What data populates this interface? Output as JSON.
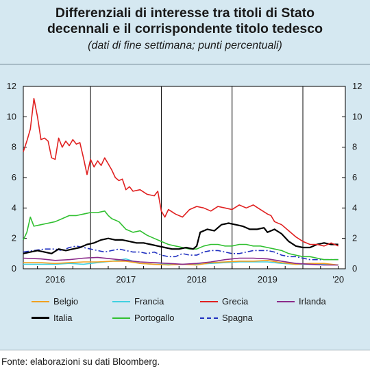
{
  "title_line1": "Differenziali di interesse tra titoli di Stato",
  "title_line2": "decennali e il corrispondente titolo tedesco",
  "subtitle": "(dati di fine settimana; punti percentuali)",
  "source": "Fonte: elaborazioni su dati Bloomberg.",
  "chart_data": {
    "type": "line",
    "title": "Differenziali di interesse tra titoli di Stato decennali e il corrispondente titolo tedesco",
    "subtitle": "(dati di fine settimana; punti percentuali)",
    "xlim": [
      2015.55,
      2020.1
    ],
    "ylim": [
      0,
      12
    ],
    "y_ticks": [
      0,
      2,
      4,
      6,
      8,
      10,
      12
    ],
    "x_tick_labels": [
      "2016",
      "2017",
      "2018",
      "2019",
      "'20"
    ],
    "x_tick_label_positions": [
      2016.0,
      2017.0,
      2018.0,
      2019.0,
      2020.0
    ],
    "year_boundaries": [
      2016.5,
      2017.5,
      2018.5,
      2019.5
    ],
    "legend_position": "bottom",
    "series": [
      {
        "name": "Belgio",
        "color": "#f0a020",
        "dash": "solid",
        "x": [
          2015.55,
          2015.8,
          2016.0,
          2016.2,
          2016.4,
          2016.6,
          2016.8,
          2017.0,
          2017.2,
          2017.4,
          2017.6,
          2017.8,
          2018.0,
          2018.2,
          2018.4,
          2018.6,
          2018.8,
          2019.0,
          2019.2,
          2019.4,
          2019.6,
          2019.8,
          2020.0
        ],
        "values": [
          0.4,
          0.4,
          0.35,
          0.4,
          0.45,
          0.45,
          0.5,
          0.5,
          0.35,
          0.3,
          0.25,
          0.3,
          0.25,
          0.4,
          0.45,
          0.5,
          0.5,
          0.55,
          0.4,
          0.3,
          0.35,
          0.35,
          0.25
        ]
      },
      {
        "name": "Francia",
        "color": "#40d0e0",
        "dash": "solid",
        "x": [
          2015.55,
          2015.8,
          2016.0,
          2016.2,
          2016.4,
          2016.6,
          2016.8,
          2017.0,
          2017.2,
          2017.4,
          2017.6,
          2017.8,
          2018.0,
          2018.2,
          2018.4,
          2018.6,
          2018.8,
          2019.0,
          2019.2,
          2019.4,
          2019.6,
          2019.8,
          2020.0
        ],
        "values": [
          0.3,
          0.3,
          0.3,
          0.35,
          0.3,
          0.4,
          0.5,
          0.65,
          0.35,
          0.3,
          0.3,
          0.3,
          0.3,
          0.35,
          0.4,
          0.45,
          0.45,
          0.45,
          0.35,
          0.3,
          0.3,
          0.3,
          0.25
        ]
      },
      {
        "name": "Grecia",
        "color": "#e02020",
        "dash": "solid",
        "x": [
          2015.55,
          2015.6,
          2015.65,
          2015.7,
          2015.75,
          2015.8,
          2015.85,
          2015.9,
          2015.95,
          2016.0,
          2016.05,
          2016.1,
          2016.15,
          2016.2,
          2016.25,
          2016.3,
          2016.35,
          2016.4,
          2016.45,
          2016.5,
          2016.55,
          2016.6,
          2016.65,
          2016.7,
          2016.75,
          2016.8,
          2016.85,
          2016.9,
          2016.95,
          2017.0,
          2017.05,
          2017.1,
          2017.2,
          2017.3,
          2017.4,
          2017.45,
          2017.5,
          2017.55,
          2017.6,
          2017.7,
          2017.8,
          2017.9,
          2018.0,
          2018.1,
          2018.2,
          2018.3,
          2018.4,
          2018.5,
          2018.6,
          2018.7,
          2018.8,
          2018.9,
          2019.0,
          2019.05,
          2019.1,
          2019.2,
          2019.3,
          2019.4,
          2019.5,
          2019.6,
          2019.7,
          2019.8,
          2019.9,
          2020.0
        ],
        "values": [
          7.7,
          8.4,
          9.2,
          11.2,
          10.0,
          8.5,
          8.6,
          8.4,
          7.3,
          7.2,
          8.6,
          8.0,
          8.4,
          8.1,
          8.5,
          8.2,
          8.3,
          7.3,
          6.2,
          7.2,
          6.7,
          7.1,
          6.8,
          7.3,
          6.9,
          6.5,
          6.0,
          5.8,
          5.9,
          5.2,
          5.4,
          5.1,
          5.2,
          4.9,
          4.8,
          5.1,
          3.8,
          3.4,
          3.9,
          3.6,
          3.4,
          3.9,
          4.1,
          4.0,
          3.8,
          4.1,
          4.0,
          3.9,
          4.2,
          4.0,
          4.2,
          3.9,
          3.6,
          3.5,
          3.1,
          2.9,
          2.5,
          2.1,
          1.8,
          1.6,
          1.6,
          1.5,
          1.7,
          1.5
        ]
      },
      {
        "name": "Irlanda",
        "color": "#8a2a8a",
        "dash": "solid",
        "x": [
          2015.55,
          2015.8,
          2016.0,
          2016.2,
          2016.4,
          2016.6,
          2016.8,
          2017.0,
          2017.2,
          2017.4,
          2017.6,
          2017.8,
          2018.0,
          2018.2,
          2018.4,
          2018.6,
          2018.8,
          2019.0,
          2019.2,
          2019.4,
          2019.6,
          2019.8,
          2020.0
        ],
        "values": [
          0.7,
          0.65,
          0.55,
          0.6,
          0.7,
          0.75,
          0.65,
          0.55,
          0.45,
          0.4,
          0.35,
          0.3,
          0.35,
          0.45,
          0.6,
          0.7,
          0.7,
          0.65,
          0.5,
          0.35,
          0.3,
          0.25,
          0.25
        ]
      },
      {
        "name": "Italia",
        "color": "#000000",
        "dash": "solid",
        "x": [
          2015.55,
          2015.65,
          2015.75,
          2015.85,
          2015.95,
          2016.05,
          2016.15,
          2016.25,
          2016.35,
          2016.45,
          2016.55,
          2016.65,
          2016.75,
          2016.85,
          2016.95,
          2017.05,
          2017.15,
          2017.25,
          2017.35,
          2017.45,
          2017.55,
          2017.65,
          2017.75,
          2017.85,
          2017.95,
          2018.0,
          2018.05,
          2018.15,
          2018.25,
          2018.35,
          2018.45,
          2018.55,
          2018.65,
          2018.75,
          2018.85,
          2018.95,
          2019.0,
          2019.1,
          2019.2,
          2019.3,
          2019.4,
          2019.5,
          2019.6,
          2019.7,
          2019.8,
          2019.9,
          2020.0
        ],
        "values": [
          1.0,
          1.1,
          1.2,
          1.1,
          1.0,
          1.3,
          1.2,
          1.3,
          1.4,
          1.6,
          1.7,
          1.9,
          2.0,
          1.9,
          1.9,
          1.8,
          1.7,
          1.7,
          1.6,
          1.5,
          1.4,
          1.3,
          1.3,
          1.4,
          1.3,
          1.5,
          2.4,
          2.6,
          2.5,
          2.9,
          3.0,
          2.9,
          2.8,
          2.6,
          2.6,
          2.7,
          2.4,
          2.6,
          2.3,
          1.8,
          1.5,
          1.4,
          1.4,
          1.6,
          1.7,
          1.6,
          1.6
        ]
      },
      {
        "name": "Portogallo",
        "color": "#30c030",
        "dash": "solid",
        "x": [
          2015.55,
          2015.6,
          2015.65,
          2015.7,
          2015.8,
          2015.9,
          2016.0,
          2016.1,
          2016.2,
          2016.3,
          2016.4,
          2016.5,
          2016.6,
          2016.7,
          2016.75,
          2016.8,
          2016.9,
          2017.0,
          2017.1,
          2017.2,
          2017.3,
          2017.4,
          2017.5,
          2017.6,
          2017.7,
          2017.8,
          2017.9,
          2018.0,
          2018.1,
          2018.2,
          2018.3,
          2018.4,
          2018.5,
          2018.6,
          2018.7,
          2018.8,
          2018.9,
          2019.0,
          2019.1,
          2019.2,
          2019.3,
          2019.4,
          2019.5,
          2019.6,
          2019.7,
          2019.8,
          2019.9,
          2020.0
        ],
        "values": [
          1.9,
          2.4,
          3.4,
          2.8,
          2.9,
          3.0,
          3.1,
          3.3,
          3.5,
          3.5,
          3.6,
          3.7,
          3.7,
          3.8,
          3.5,
          3.3,
          3.1,
          2.6,
          2.4,
          2.5,
          2.2,
          2.0,
          1.8,
          1.6,
          1.5,
          1.4,
          1.3,
          1.3,
          1.5,
          1.6,
          1.6,
          1.5,
          1.5,
          1.6,
          1.6,
          1.5,
          1.5,
          1.4,
          1.3,
          1.2,
          1.0,
          0.9,
          0.8,
          0.8,
          0.7,
          0.6,
          0.6,
          0.6
        ]
      },
      {
        "name": "Spagna",
        "color": "#2030c0",
        "dash": "dashdot",
        "x": [
          2015.55,
          2015.7,
          2015.85,
          2016.0,
          2016.1,
          2016.2,
          2016.3,
          2016.4,
          2016.5,
          2016.6,
          2016.7,
          2016.8,
          2016.9,
          2017.0,
          2017.1,
          2017.2,
          2017.3,
          2017.4,
          2017.5,
          2017.6,
          2017.7,
          2017.8,
          2017.9,
          2018.0,
          2018.1,
          2018.2,
          2018.3,
          2018.4,
          2018.5,
          2018.6,
          2018.7,
          2018.8,
          2018.9,
          2019.0,
          2019.1,
          2019.2,
          2019.3,
          2019.4,
          2019.5,
          2019.6,
          2019.7,
          2019.8,
          2019.9,
          2020.0
        ],
        "values": [
          1.1,
          1.2,
          1.3,
          1.3,
          1.2,
          1.4,
          1.5,
          1.4,
          1.3,
          1.2,
          1.1,
          1.2,
          1.3,
          1.2,
          1.1,
          1.1,
          1.0,
          1.1,
          0.9,
          0.8,
          0.8,
          1.0,
          0.9,
          0.9,
          1.1,
          1.2,
          1.2,
          1.1,
          1.0,
          1.0,
          1.1,
          1.2,
          1.2,
          1.2,
          1.1,
          0.9,
          0.8,
          0.8,
          0.7,
          0.6,
          0.6,
          0.6,
          0.6,
          0.6
        ]
      }
    ]
  }
}
